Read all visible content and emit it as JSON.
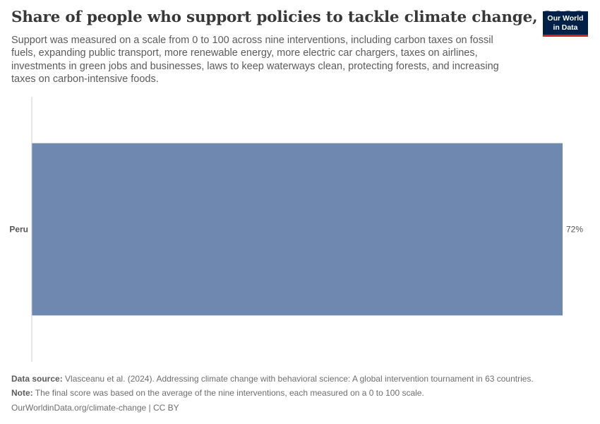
{
  "header": {
    "title": "Share of people who support policies to tackle climate change, 2023",
    "subtitle": "Support was measured on a scale from 0 to 100 across nine interventions, including carbon taxes on fossil fuels, expanding public transport, more renewable energy, more electric car chargers, taxes on airlines, investments in green jobs and businesses, laws to keep waterways clean, protecting forests, and increasing taxes on carbon-intensive foods."
  },
  "logo": {
    "line1": "Our World",
    "line2": "in Data"
  },
  "chart_data": {
    "type": "bar",
    "orientation": "horizontal",
    "categories": [
      "Peru"
    ],
    "values": [
      72
    ],
    "value_labels": [
      "72%"
    ],
    "title": "Share of people who support policies to tackle climate change, 2023",
    "xlim": [
      0,
      72
    ],
    "grid": false,
    "colors": {
      "bar": "#6f88b0",
      "axis": "#cccccc",
      "label": "#555555"
    }
  },
  "footer": {
    "source_label": "Data source:",
    "source_text": " Vlasceanu et al. (2024). Addressing climate change with behavioral science: A global intervention tournament in 63 countries.",
    "note_label": "Note:",
    "note_text": " The final score was based on the average of the nine interventions, each measured on a 0 to 100 scale.",
    "credit": "OurWorldinData.org/climate-change | CC BY"
  }
}
